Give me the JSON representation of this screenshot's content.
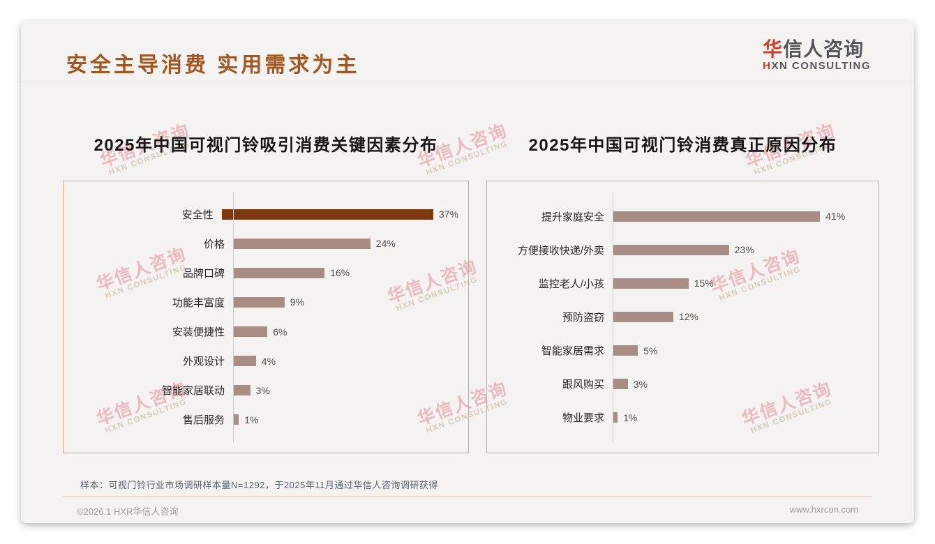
{
  "page": {
    "title": "安全主导消费 实用需求为主",
    "logo": {
      "cn_first": "华",
      "cn_rest": "信人咨询",
      "en_first": "H",
      "en_rest": "XN CONSULTING"
    },
    "watermark": {
      "cn": "华信人咨询",
      "en": "HXN CONSULTING"
    },
    "note": "样本：可视门铃行业市场调研样本量N=1292，于2025年11月通过华信人咨询调研获得",
    "copyright": "©2026.1 HXR华信人咨询",
    "website": "www.hxrcon.com"
  },
  "colors": {
    "title_brown": "#a3561e",
    "bar_highlight": "#7d3a0e",
    "bar_default": "#a98d85",
    "panel_border": "#dfa77d",
    "logo_red": "#d23a26",
    "watermark_pink": "#ecb9bd"
  },
  "chart_data": [
    {
      "type": "bar",
      "orientation": "horizontal",
      "title": "2025年中国可视门铃吸引消费关键因素分布",
      "categories": [
        "安全性",
        "价格",
        "品牌口碑",
        "功能丰富度",
        "安装便捷性",
        "外观设计",
        "智能家居联动",
        "售后服务"
      ],
      "values": [
        37,
        24,
        16,
        9,
        6,
        4,
        3,
        1
      ],
      "value_suffix": "%",
      "highlight_index": 0,
      "xlim": [
        0,
        40
      ],
      "grid": false,
      "legend": false
    },
    {
      "type": "bar",
      "orientation": "horizontal",
      "title": "2025年中国可视门铃消费真正原因分布",
      "categories": [
        "提升家庭安全",
        "方便接收快递/外卖",
        "监控老人/小孩",
        "预防盗窃",
        "智能家居需求",
        "跟风购买",
        "物业要求"
      ],
      "values": [
        41,
        23,
        15,
        12,
        5,
        3,
        1
      ],
      "value_suffix": "%",
      "highlight_index": null,
      "xlim": [
        0,
        45
      ],
      "grid": false,
      "legend": false
    }
  ]
}
